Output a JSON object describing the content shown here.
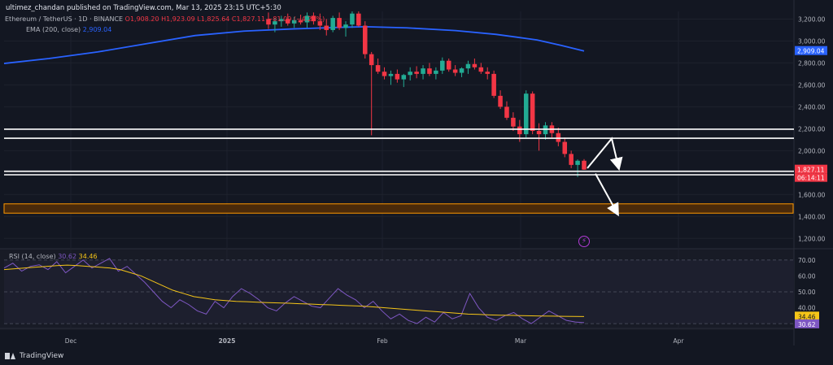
{
  "header": {
    "publisher_line": "ultimez_chandan published on TradingView.com, Mar 13, 2025 23:15 UTC+5:30",
    "symbol": "Ethereum / TetherUS · 1D · BINANCE",
    "ohlc": "O1,908.20  H1,923.09  L1,825.64  C1,827.11  −81.09 (−4.25%)",
    "ema_label": "EMA (200, close)",
    "ema_value": "2,909.04",
    "rsi_label": "RSI (14, close)",
    "rsi_value": "30.62",
    "rsi_ma_value": "34.46"
  },
  "brand": {
    "name": "TradingView"
  },
  "icons": {
    "flash": "flash-icon",
    "logo": "tradingview-logo-icon"
  },
  "colors": {
    "background": "#131722",
    "up": "#22ab94",
    "down": "#f23645",
    "ema": "#2962ff",
    "rsi": "#7e57c2",
    "rsi_ma": "#f5c518",
    "zone": "#ff9800"
  },
  "chart_data": [
    {
      "type": "candlestick",
      "title": "",
      "x_ticks": [
        "Dec",
        "2025",
        "Feb",
        "Mar",
        "Apr"
      ],
      "y_ticks": [
        "3,200.00",
        "3,000.00",
        "2,800.00",
        "2,600.00",
        "2,400.00",
        "2,200.00",
        "2,000.00",
        "1,800.00",
        "1,600.00",
        "1,400.00",
        "1,200.00"
      ],
      "ylim": [
        1150,
        3270
      ],
      "last_price": "1,827.11",
      "countdown": "06:14:11",
      "ema_label_value": "2,909.04",
      "ema200": [
        2795,
        2840,
        2900,
        2975,
        3050,
        3090,
        3110,
        3125,
        3130,
        3120,
        3095,
        3060,
        3010,
        2960,
        2909
      ],
      "support_lines": [
        2196,
        2113,
        1812,
        1780
      ],
      "demand_zone": [
        1430,
        1515
      ],
      "candles_phase": [
        {
          "o": 3200,
          "h": 3260,
          "l": 3110,
          "c": 3150
        },
        {
          "o": 3150,
          "h": 3210,
          "l": 3080,
          "c": 3180
        },
        {
          "o": 3180,
          "h": 3230,
          "l": 3130,
          "c": 3200
        },
        {
          "o": 3200,
          "h": 3250,
          "l": 3140,
          "c": 3160
        },
        {
          "o": 3160,
          "h": 3220,
          "l": 3120,
          "c": 3190
        },
        {
          "o": 3190,
          "h": 3240,
          "l": 3150,
          "c": 3170
        },
        {
          "o": 3170,
          "h": 3260,
          "l": 3120,
          "c": 3230
        },
        {
          "o": 3230,
          "h": 3260,
          "l": 3150,
          "c": 3180
        },
        {
          "o": 3180,
          "h": 3250,
          "l": 3100,
          "c": 3140
        },
        {
          "o": 3140,
          "h": 3200,
          "l": 3050,
          "c": 3100
        },
        {
          "o": 3100,
          "h": 3230,
          "l": 3080,
          "c": 3210
        },
        {
          "o": 3210,
          "h": 3260,
          "l": 3100,
          "c": 3120
        },
        {
          "o": 3120,
          "h": 3180,
          "l": 3040,
          "c": 3150
        },
        {
          "o": 3150,
          "h": 3270,
          "l": 3120,
          "c": 3250
        },
        {
          "o": 3250,
          "h": 3270,
          "l": 3130,
          "c": 3140
        },
        {
          "o": 3140,
          "h": 3180,
          "l": 2840,
          "c": 2880
        },
        {
          "o": 2880,
          "h": 2900,
          "l": 2140,
          "c": 2780
        },
        {
          "o": 2780,
          "h": 2840,
          "l": 2700,
          "c": 2720
        },
        {
          "o": 2720,
          "h": 2760,
          "l": 2650,
          "c": 2680
        },
        {
          "o": 2680,
          "h": 2730,
          "l": 2600,
          "c": 2700
        },
        {
          "o": 2700,
          "h": 2740,
          "l": 2620,
          "c": 2650
        },
        {
          "o": 2650,
          "h": 2700,
          "l": 2580,
          "c": 2690
        },
        {
          "o": 2690,
          "h": 2760,
          "l": 2640,
          "c": 2720
        },
        {
          "o": 2720,
          "h": 2770,
          "l": 2660,
          "c": 2700
        },
        {
          "o": 2700,
          "h": 2780,
          "l": 2650,
          "c": 2750
        },
        {
          "o": 2750,
          "h": 2800,
          "l": 2680,
          "c": 2700
        },
        {
          "o": 2700,
          "h": 2760,
          "l": 2650,
          "c": 2730
        },
        {
          "o": 2730,
          "h": 2850,
          "l": 2700,
          "c": 2820
        },
        {
          "o": 2820,
          "h": 2840,
          "l": 2720,
          "c": 2740
        },
        {
          "o": 2740,
          "h": 2780,
          "l": 2680,
          "c": 2710
        },
        {
          "o": 2710,
          "h": 2760,
          "l": 2670,
          "c": 2750
        },
        {
          "o": 2750,
          "h": 2820,
          "l": 2700,
          "c": 2790
        },
        {
          "o": 2790,
          "h": 2840,
          "l": 2740,
          "c": 2760
        },
        {
          "o": 2760,
          "h": 2800,
          "l": 2700,
          "c": 2720
        },
        {
          "o": 2720,
          "h": 2760,
          "l": 2650,
          "c": 2700
        },
        {
          "o": 2700,
          "h": 2730,
          "l": 2480,
          "c": 2500
        },
        {
          "o": 2500,
          "h": 2550,
          "l": 2380,
          "c": 2400
        },
        {
          "o": 2400,
          "h": 2450,
          "l": 2280,
          "c": 2300
        },
        {
          "o": 2300,
          "h": 2350,
          "l": 2180,
          "c": 2220
        },
        {
          "o": 2220,
          "h": 2280,
          "l": 2080,
          "c": 2150
        },
        {
          "o": 2150,
          "h": 2550,
          "l": 2120,
          "c": 2520
        },
        {
          "o": 2520,
          "h": 2540,
          "l": 2150,
          "c": 2180
        },
        {
          "o": 2180,
          "h": 2250,
          "l": 2000,
          "c": 2150
        },
        {
          "o": 2150,
          "h": 2260,
          "l": 2100,
          "c": 2230
        },
        {
          "o": 2230,
          "h": 2260,
          "l": 2120,
          "c": 2160
        },
        {
          "o": 2160,
          "h": 2210,
          "l": 2040,
          "c": 2080
        },
        {
          "o": 2080,
          "h": 2120,
          "l": 1940,
          "c": 1970
        },
        {
          "o": 1970,
          "h": 2000,
          "l": 1840,
          "c": 1870
        },
        {
          "o": 1870,
          "h": 1920,
          "l": 1760,
          "c": 1908
        },
        {
          "o": 1908,
          "h": 1923,
          "l": 1825,
          "c": 1827
        }
      ],
      "projection_up": [
        [
          1840,
          1
        ],
        [
          2110,
          2
        ],
        [
          1860,
          0
        ]
      ],
      "projection_down": [
        [
          1790,
          0
        ],
        [
          1440,
          1
        ]
      ]
    },
    {
      "type": "line",
      "title": "",
      "y_ticks": [
        "70.00",
        "60.00",
        "50.00",
        "40.00"
      ],
      "ylim": [
        28,
        73
      ],
      "rsi_label_value": "30.62",
      "rsi_ma_label_value": "34.46",
      "series": [
        {
          "values": [
            65,
            68,
            63,
            66,
            67,
            64,
            69,
            62,
            66,
            70,
            65,
            68,
            71,
            63,
            66,
            61,
            56,
            50,
            44,
            40,
            45,
            42,
            38,
            36,
            44,
            40,
            47,
            52,
            49,
            45,
            40,
            38,
            43,
            47,
            44,
            41,
            40,
            46,
            52,
            48,
            45,
            40,
            44,
            38,
            33,
            36,
            32,
            30,
            34,
            31,
            37,
            33,
            35,
            49,
            40,
            34,
            32,
            35,
            37,
            33,
            30,
            34,
            38,
            35,
            32,
            31,
            30.62
          ]
        },
        {
          "values": [
            64,
            64.5,
            65,
            65.5,
            66,
            66.5,
            66.8,
            66.5,
            66,
            65.5,
            65,
            64,
            62,
            60,
            57,
            54,
            51,
            49,
            47,
            46,
            45,
            44.5,
            44,
            43.8,
            43.5,
            43.2,
            43,
            42.8,
            42.5,
            42.3,
            42,
            41.8,
            41.5,
            41.2,
            41,
            40.5,
            40,
            39.5,
            39,
            38.5,
            38,
            37.5,
            37,
            36.5,
            36,
            35.8,
            35.5,
            35.3,
            35.2,
            35,
            34.9,
            34.8,
            34.7,
            34.6,
            34.5,
            34.46
          ]
        }
      ]
    }
  ]
}
